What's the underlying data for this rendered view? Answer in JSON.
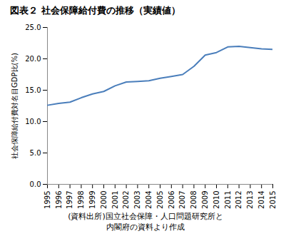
{
  "chart_data": {
    "type": "line",
    "title": "図表２ 社会保障給付費の推移（実績値）",
    "y_label": "社会保障給付費対名目GDP比(%)",
    "caption": [
      "(資料出所)国立社会保障・人口問題研究所と",
      "内閣府の資料より作成"
    ],
    "x": [
      1995,
      1996,
      1997,
      1998,
      1999,
      2000,
      2001,
      2002,
      2003,
      2004,
      2005,
      2006,
      2007,
      2008,
      2009,
      2010,
      2011,
      2012,
      2013,
      2014,
      2015
    ],
    "values": [
      12.6,
      12.9,
      13.1,
      13.8,
      14.4,
      14.8,
      15.7,
      16.3,
      16.4,
      16.5,
      16.9,
      17.2,
      17.5,
      18.8,
      20.6,
      21.0,
      21.9,
      22.0,
      21.8,
      21.6,
      21.5
    ],
    "color": "#4a7ebb",
    "xlim": [
      1995,
      2015
    ],
    "xticks": [
      1995,
      1996,
      1997,
      1998,
      1999,
      2000,
      2001,
      2002,
      2003,
      2004,
      2005,
      2006,
      2007,
      2008,
      2009,
      2010,
      2011,
      2012,
      2013,
      2014,
      2015
    ],
    "ylim": [
      0,
      25
    ],
    "yticks": [
      {
        "value": 0,
        "label": "0.0"
      },
      {
        "value": 5,
        "label": "5.0"
      },
      {
        "value": 10,
        "label": "10.0"
      },
      {
        "value": 15,
        "label": "15.0"
      },
      {
        "value": 20,
        "label": "20.0"
      },
      {
        "value": 25,
        "label": "25.0"
      }
    ],
    "grid": false
  }
}
